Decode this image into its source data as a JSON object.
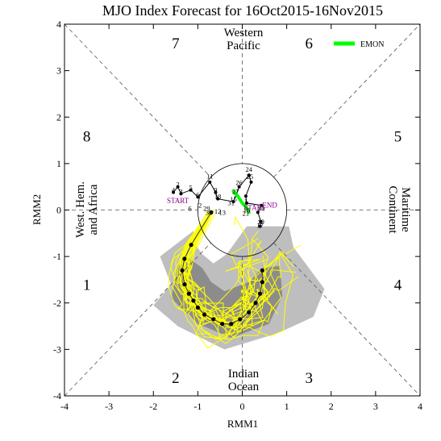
{
  "chart_data": {
    "type": "line",
    "title": "MJO Index Forecast for 16Oct2015-16Nov2015",
    "xlabel": "RMM1",
    "ylabel": "RMM2",
    "xlim": [
      -4,
      4
    ],
    "ylim": [
      -4,
      4
    ],
    "x_ticks": [
      "-4",
      "-3",
      "-2",
      "-1",
      "0",
      "1",
      "2",
      "3",
      "4"
    ],
    "y_ticks": [
      "-4",
      "-3",
      "-2",
      "-1",
      "0",
      "1",
      "2",
      "3",
      "4"
    ],
    "grid": false,
    "unit_circle_radius": 1,
    "phases": [
      {
        "label": "1",
        "x": -3.5,
        "y": -1.6
      },
      {
        "label": "2",
        "x": -1.5,
        "y": -3.6
      },
      {
        "label": "3",
        "x": 1.5,
        "y": -3.6
      },
      {
        "label": "4",
        "x": 3.5,
        "y": -1.6
      },
      {
        "label": "5",
        "x": 3.5,
        "y": 1.6
      },
      {
        "label": "6",
        "x": 1.5,
        "y": 3.6
      },
      {
        "label": "7",
        "x": -1.5,
        "y": 3.6
      },
      {
        "label": "8",
        "x": -3.5,
        "y": 1.6
      }
    ],
    "regions": {
      "top": [
        "Western",
        "Pacific"
      ],
      "bottom": [
        "Indian",
        "Ocean"
      ],
      "left": [
        "West. Hem.",
        "and Africa"
      ],
      "right": [
        "Maritime",
        "Continent"
      ]
    },
    "legend": {
      "label": "EMON",
      "color": "#00ff00",
      "position": "top-right"
    },
    "colors": {
      "observed": "#000000",
      "ensemble_members": "#ffff00",
      "spread_outer": "#bebebe",
      "spread_inner": "#8c8c8c",
      "ensemble_mean": "#00ff00",
      "forecast_mean": "#000000",
      "early_days": "#8b008b"
    },
    "observed_labels": [
      {
        "text": "24",
        "x": 0.15,
        "y": 0.82
      },
      {
        "text": "25",
        "x": 0.17,
        "y": 0.67
      },
      {
        "text": "26",
        "x": -0.07,
        "y": 0.54
      },
      {
        "text": "27",
        "x": -0.15,
        "y": 0.35
      },
      {
        "text": "11",
        "x": -0.73,
        "y": 0.68
      },
      {
        "text": "9",
        "x": -0.6,
        "y": 0.38
      },
      {
        "text": "5",
        "x": -1.16,
        "y": 0.43
      },
      {
        "text": "4",
        "x": -1.55,
        "y": 0.38
      },
      {
        "text": "3",
        "x": -1.38,
        "y": 0.35
      },
      {
        "text": "6",
        "x": -1.0,
        "y": 0.28
      },
      {
        "text": "2",
        "x": -1.45,
        "y": 0.5
      },
      {
        "text": "18",
        "x": -0.55,
        "y": 0.24
      },
      {
        "text": "15",
        "x": -0.2,
        "y": 0.18
      },
      {
        "text": "31",
        "x": -0.25,
        "y": 0.1
      },
      {
        "text": "1",
        "x": 0.08,
        "y": 0.15
      },
      {
        "text": "2",
        "x": -0.95,
        "y": 0.05
      },
      {
        "text": "6",
        "x": -1.18,
        "y": -0.02
      },
      {
        "text": "29",
        "x": -0.8,
        "y": -0.02
      },
      {
        "text": "30",
        "x": -0.75,
        "y": -0.1
      },
      {
        "text": "12",
        "x": -0.55,
        "y": -0.08
      },
      {
        "text": "13",
        "x": -0.45,
        "y": -0.1
      },
      {
        "text": "16",
        "x": 0.1,
        "y": -0.05
      },
      {
        "text": "30",
        "x": 0.43,
        "y": -0.02
      },
      {
        "text": "21",
        "x": 0.08,
        "y": -0.12
      },
      {
        "text": "19",
        "x": 0.42,
        "y": -0.3
      },
      {
        "text": "17",
        "x": 0.4,
        "y": -0.38
      }
    ],
    "text_markers": [
      {
        "text": "START",
        "x": -1.45,
        "y": 0.15,
        "color": "#8b008b"
      },
      {
        "text": "START",
        "x": 0.28,
        "y": 0.0,
        "color": "#8b008b"
      },
      {
        "text": "END",
        "x": 0.62,
        "y": 0.05,
        "color": "#8b008b"
      }
    ],
    "observed_track": [
      {
        "x": -1.55,
        "y": 0.38
      },
      {
        "x": -1.45,
        "y": 0.5
      },
      {
        "x": -1.38,
        "y": 0.35
      },
      {
        "x": -1.16,
        "y": 0.43
      },
      {
        "x": -1.0,
        "y": 0.28
      },
      {
        "x": -0.73,
        "y": 0.6
      },
      {
        "x": -0.6,
        "y": 0.38
      },
      {
        "x": -0.55,
        "y": 0.24
      },
      {
        "x": -0.2,
        "y": 0.18
      },
      {
        "x": -0.07,
        "y": 0.5
      },
      {
        "x": 0.15,
        "y": 0.75
      },
      {
        "x": 0.2,
        "y": 0.6
      },
      {
        "x": 0.08,
        "y": 0.3
      },
      {
        "x": 0.1,
        "y": 0.15
      },
      {
        "x": 0.43,
        "y": 0.1
      },
      {
        "x": 0.35,
        "y": -0.05
      },
      {
        "x": 0.42,
        "y": -0.25
      },
      {
        "x": 0.4,
        "y": -0.35
      }
    ],
    "ensemble_mean_track": [
      {
        "x": -0.2,
        "y": 0.4
      },
      {
        "x": -0.1,
        "y": 0.3
      },
      {
        "x": 0.0,
        "y": 0.15
      },
      {
        "x": 0.1,
        "y": 0.05
      },
      {
        "x": 0.15,
        "y": -0.05
      }
    ],
    "forecast_mean_track": [
      {
        "x": -0.7,
        "y": -0.05
      },
      {
        "x": -1.15,
        "y": -0.75
      },
      {
        "x": -1.3,
        "y": -1.05
      },
      {
        "x": -1.35,
        "y": -1.3
      },
      {
        "x": -1.3,
        "y": -1.6
      },
      {
        "x": -1.2,
        "y": -1.8
      },
      {
        "x": -1.1,
        "y": -1.95
      },
      {
        "x": -1.0,
        "y": -2.1
      },
      {
        "x": -0.85,
        "y": -2.25
      },
      {
        "x": -0.65,
        "y": -2.35
      },
      {
        "x": -0.45,
        "y": -2.45
      },
      {
        "x": -0.25,
        "y": -2.45
      },
      {
        "x": -0.05,
        "y": -2.35
      },
      {
        "x": 0.15,
        "y": -2.2
      },
      {
        "x": 0.3,
        "y": -2.0
      },
      {
        "x": 0.4,
        "y": -1.8
      },
      {
        "x": 0.45,
        "y": -1.55
      },
      {
        "x": 0.45,
        "y": -1.3
      }
    ],
    "spread_outer_polygon": [
      {
        "x": -1.6,
        "y": -1.6
      },
      {
        "x": -2.0,
        "y": -2.05
      },
      {
        "x": -1.45,
        "y": -2.5
      },
      {
        "x": -0.4,
        "y": -3.0
      },
      {
        "x": 0.8,
        "y": -2.65
      },
      {
        "x": 1.6,
        "y": -2.3
      },
      {
        "x": 1.85,
        "y": -1.7
      },
      {
        "x": 1.15,
        "y": -0.8
      },
      {
        "x": 1.05,
        "y": -0.35
      },
      {
        "x": 0.1,
        "y": -0.35
      },
      {
        "x": -0.35,
        "y": -0.95
      },
      {
        "x": -0.65,
        "y": -1.15
      },
      {
        "x": -0.9,
        "y": -0.95
      },
      {
        "x": -1.05,
        "y": -0.75
      },
      {
        "x": -1.1,
        "y": -0.45
      },
      {
        "x": -1.85,
        "y": -1.0
      }
    ],
    "spread_inner_polygon": [
      {
        "x": -1.6,
        "y": -1.9
      },
      {
        "x": -1.0,
        "y": -2.45
      },
      {
        "x": -0.25,
        "y": -2.75
      },
      {
        "x": 0.6,
        "y": -2.45
      },
      {
        "x": 0.9,
        "y": -1.85
      },
      {
        "x": 0.85,
        "y": -1.2
      },
      {
        "x": 0.45,
        "y": -1.25
      },
      {
        "x": 0.15,
        "y": -1.55
      },
      {
        "x": -0.4,
        "y": -1.75
      },
      {
        "x": -0.7,
        "y": -1.55
      },
      {
        "x": -0.9,
        "y": -1.25
      },
      {
        "x": -1.25,
        "y": -1.0
      },
      {
        "x": -1.45,
        "y": -1.2
      }
    ]
  }
}
